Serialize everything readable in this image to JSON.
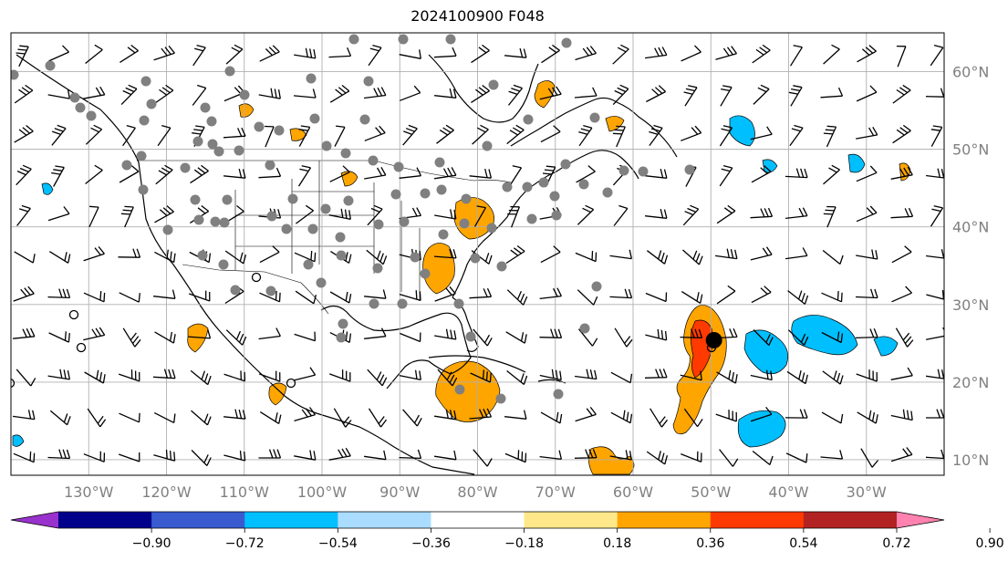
{
  "title": "2024100900 F048",
  "map": {
    "lon_range": [
      -140,
      -20
    ],
    "lat_range": [
      8,
      65
    ],
    "lat_labels": [
      "10°N",
      "20°N",
      "30°N",
      "40°N",
      "50°N",
      "60°N"
    ],
    "lat_values": [
      10,
      20,
      30,
      40,
      50,
      60
    ],
    "lon_labels": [
      "130°W",
      "120°W",
      "110°W",
      "100°W",
      "90°W",
      "80°W",
      "70°W",
      "60°W",
      "50°W",
      "40°W",
      "30°W"
    ],
    "lon_values": [
      -130,
      -120,
      -110,
      -100,
      -90,
      -80,
      -70,
      -60,
      -50,
      -40,
      -30
    ],
    "grid": true,
    "storm_center": {
      "lon": -49.6,
      "lat": 25.4
    }
  },
  "colorbar": {
    "ticks": [
      "−0.90",
      "−0.72",
      "−0.54",
      "−0.36",
      "−0.18",
      "0.18",
      "0.36",
      "0.54",
      "0.72",
      "0.90"
    ],
    "colors": [
      "#9932cc",
      "#00008b",
      "#3a5bd0",
      "#00bfff",
      "#aadcff",
      "#ffffff",
      "#ffe88a",
      "#ffa500",
      "#ff3a00",
      "#b22222",
      "#ff82b0"
    ],
    "extend": "both"
  }
}
